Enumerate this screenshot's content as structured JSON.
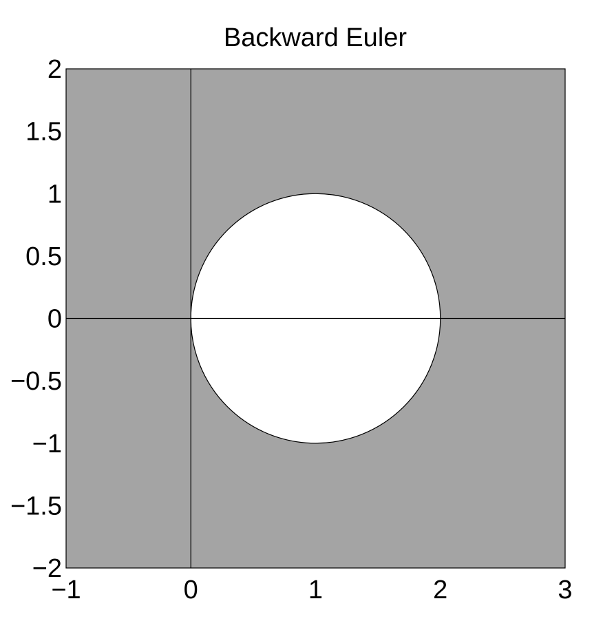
{
  "chart_data": {
    "type": "area",
    "title": "Backward Euler",
    "xlabel": "",
    "ylabel": "",
    "xlim": [
      -1,
      3
    ],
    "ylim": [
      -2,
      2
    ],
    "xticks": [
      -1,
      0,
      1,
      2,
      3
    ],
    "xtick_labels": [
      "−1",
      "0",
      "1",
      "2",
      "3"
    ],
    "yticks": [
      2,
      1.5,
      1,
      0.5,
      0,
      -0.5,
      -1,
      -1.5,
      -2
    ],
    "ytick_labels": [
      "2",
      "1.5",
      "1",
      "0.5",
      "0",
      "−0.5",
      "−1",
      "−1.5",
      "−2"
    ],
    "grid": false,
    "stability_region": {
      "shaded": "outside unit circle",
      "excluded_disk": {
        "center": [
          1,
          0
        ],
        "radius": 1
      }
    },
    "colors": {
      "shaded": "#a4a4a4",
      "disk": "#ffffff",
      "lines": "#000000"
    }
  }
}
